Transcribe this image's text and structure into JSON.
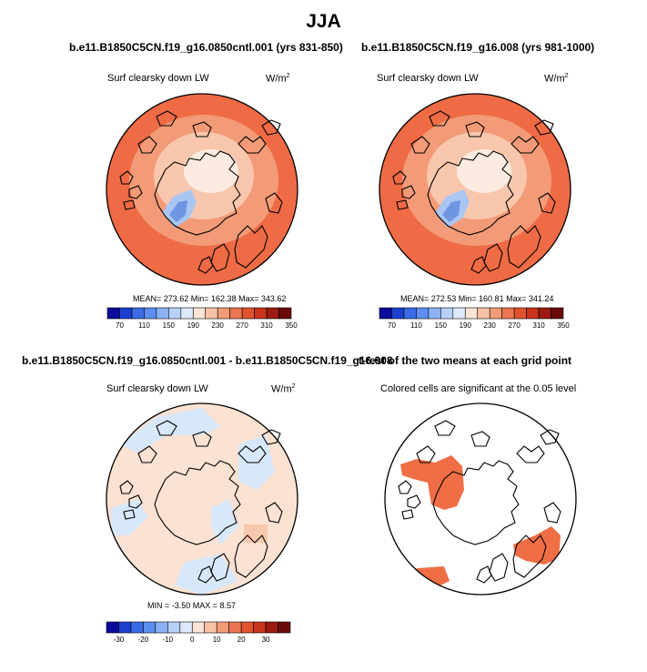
{
  "title": "JJA",
  "panels": {
    "p1": {
      "case_title": "b.e11.B1850C5CN.f19_g16.0850cntl.001 (yrs 831-850)",
      "variable": "Surf clearsky down LW",
      "units": "W/m",
      "units_exp": "2",
      "stats": "MEAN= 273.62  Min= 162.38  Max= 343.62"
    },
    "p2": {
      "case_title": "b.e11.B1850C5CN.f19_g16.008 (yrs 981-1000)",
      "variable": "Surf clearsky down LW",
      "units": "W/m",
      "units_exp": "2",
      "stats": "MEAN= 272.53  Min= 160.81  Max= 341.24"
    },
    "p3": {
      "case_title": "b.e11.B1850C5CN.f19_g16.0850cntl.001 - b.e11.B1850C5CN.f19_g16.008",
      "variable": "Surf clearsky down LW",
      "units": "W/m",
      "units_exp": "2",
      "stats": "MIN =  -3.50 MAX =   8.57"
    },
    "p4": {
      "case_title": "t-test of the two means at each grid point",
      "note": "Colored cells are significant at the 0.05 level"
    }
  },
  "colorbars": {
    "field": {
      "labels": [
        "70",
        "110",
        "150",
        "190",
        "230",
        "270",
        "310",
        "350"
      ],
      "colors": [
        "#0b0b9c",
        "#1c3fd2",
        "#3a6ae6",
        "#5e8ef0",
        "#8bb2f6",
        "#b7d2fa",
        "#dde9fb",
        "#fbe4d6",
        "#f7c3a7",
        "#f29c77",
        "#ec7552",
        "#e3522f",
        "#c9341c",
        "#9c1b12",
        "#6b0a0a"
      ]
    },
    "diff": {
      "labels": [
        "-30",
        "-20",
        "-10",
        "0",
        "10",
        "20",
        "30"
      ],
      "colors": [
        "#0b0b9c",
        "#1c3fd2",
        "#3a6ae6",
        "#5e8ef0",
        "#8bb2f6",
        "#b7d2fa",
        "#dde9fb",
        "#fbe4d6",
        "#f7c3a7",
        "#f29c77",
        "#ec7552",
        "#e3522f",
        "#c9341c",
        "#9c1b12",
        "#6b0a0a"
      ]
    }
  },
  "colors": {
    "warm_outer": "#ee6b45",
    "warm_mid": "#f39b78",
    "warm_inner": "#f8c7ad",
    "pole": "#fcebe0",
    "greenland_blue": "#a9c6f3",
    "greenland_deep": "#6f96e2",
    "diff_pos": "#fbe2d2",
    "diff_neg": "#d8e8fb",
    "sig": "#ef6e45"
  }
}
